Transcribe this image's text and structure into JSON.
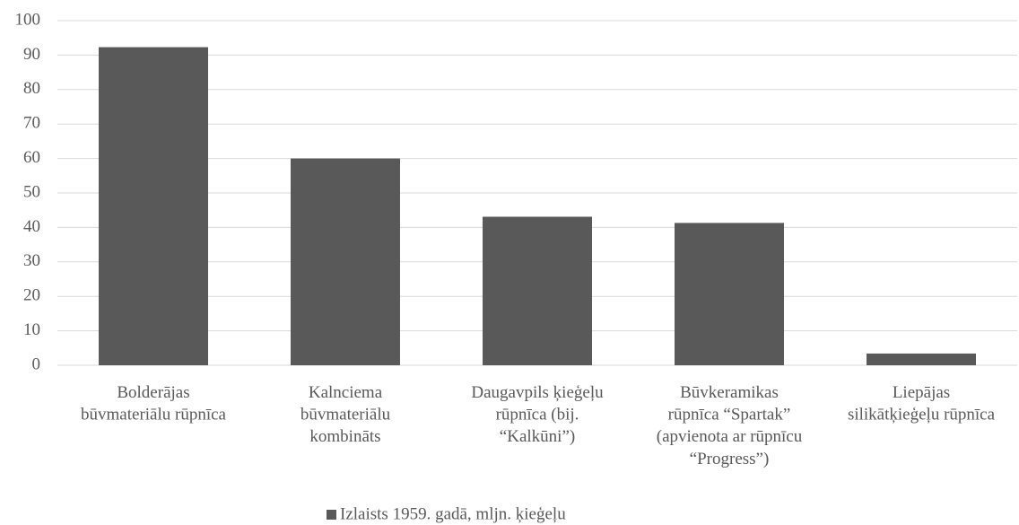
{
  "chart_data": {
    "type": "bar",
    "categories": [
      "Bolderājas\nbūvmateriālu rūpnīca",
      "Kalnciema\nbūvmateriālu\nkombināts",
      "Daugavpils ķieģeļu\nrūpnīca (bij.\n“Kalkūni”)",
      "Būvkeramikas\nrūpnīca “Spartak”\n(apvienota ar rūpnīcu\n“Progress”)",
      "Liepājas\nsilikātķieģeļu rūpnīca"
    ],
    "series": [
      {
        "name": "Izlaists 1959. gadā, mljn. ķieģeļu",
        "color": "#595959",
        "values": [
          92.3,
          60,
          43.1,
          41.3,
          3.4
        ]
      }
    ],
    "ylim": [
      0,
      100
    ],
    "yticks": [
      0,
      10,
      20,
      30,
      40,
      50,
      60,
      70,
      80,
      90,
      100
    ],
    "grid": true,
    "legend": "bottom"
  }
}
